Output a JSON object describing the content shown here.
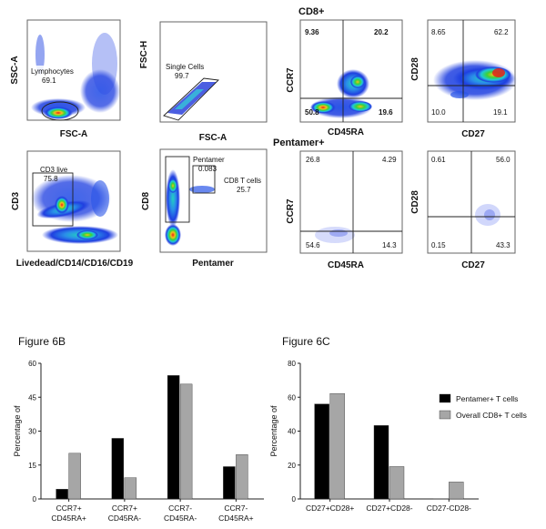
{
  "sections": {
    "cd8_label": "CD8+",
    "pentamer_label": "Pentamer+"
  },
  "flow_panels": {
    "lymphocytes": {
      "x_axis": "FSC-A",
      "y_axis": "SSC-A",
      "gate_name": "Lymphocytes",
      "gate_value": "69.1"
    },
    "single_cells": {
      "x_axis": "FSC-A",
      "y_axis": "FSC-H",
      "gate_name": "Single Cells",
      "gate_value": "99.7"
    },
    "cd3_live": {
      "x_axis": "Livedead/CD14/CD16/CD19",
      "y_axis": "CD3",
      "gate_name": "CD3 live",
      "gate_value": "75.8"
    },
    "pentamer": {
      "x_axis": "Pentamer",
      "y_axis": "CD8",
      "gate_name": "Pentamer",
      "gate_value": "0.083",
      "gate2_name": "CD8 T cells",
      "gate2_value": "25.7"
    },
    "cd8_ccr7": {
      "x_axis": "CD45RA",
      "y_axis": "CCR7",
      "q_tl": "9.36",
      "q_tr": "20.2",
      "q_bl": "50.8",
      "q_br": "19.6"
    },
    "cd8_cd28": {
      "x_axis": "CD27",
      "y_axis": "CD28",
      "q_tl": "8.65",
      "q_tr": "62.2",
      "q_bl": "10.0",
      "q_br": "19.1"
    },
    "pent_ccr7": {
      "x_axis": "CD45RA",
      "y_axis": "CCR7",
      "q_tl": "26.8",
      "q_tr": "4.29",
      "q_bl": "54.6",
      "q_br": "14.3"
    },
    "pent_cd28": {
      "x_axis": "CD27",
      "y_axis": "CD28",
      "q_tl": "0.61",
      "q_tr": "56.0",
      "q_bl": "0.15",
      "q_br": "43.3"
    }
  },
  "chart_data": [
    {
      "type": "bar",
      "title": "Figure 6B",
      "ylabel": "Percentage of",
      "xlabel": "",
      "ylim": [
        0,
        60
      ],
      "yticks": [
        "0",
        "15",
        "30",
        "45",
        "60"
      ],
      "categories": [
        [
          "CCR7+",
          "CD45RA+"
        ],
        [
          "CCR7+",
          "CD45RA-"
        ],
        [
          "CCR7-",
          "CD45RA-"
        ],
        [
          "CCR7-",
          "CD45RA+"
        ]
      ],
      "series": [
        {
          "name": "Pentamer+ T cells",
          "color": "#000000",
          "values": [
            4.3,
            26.8,
            54.6,
            14.3
          ]
        },
        {
          "name": "Overall CD8+ T cells",
          "color": "#a6a6a6",
          "values": [
            20.2,
            9.4,
            50.8,
            19.6
          ]
        }
      ]
    },
    {
      "type": "bar",
      "title": "Figure 6C",
      "ylabel": "Percentage of",
      "xlabel": "",
      "ylim": [
        0,
        80
      ],
      "yticks": [
        "0",
        "20",
        "40",
        "60",
        "80"
      ],
      "categories": [
        [
          "CD27+CD28+"
        ],
        [
          "CD27+CD28-"
        ],
        [
          "CD27-CD28-"
        ]
      ],
      "series": [
        {
          "name": "Pentamer+ T cells",
          "color": "#000000",
          "values": [
            56.0,
            43.3,
            0.15
          ]
        },
        {
          "name": "Overall CD8+ T cells",
          "color": "#a6a6a6",
          "values": [
            62.2,
            19.1,
            10.0
          ]
        }
      ],
      "legend": {
        "position": "top-right",
        "entries": [
          "Pentamer+ T cells",
          "Overall CD8+ T cells"
        ]
      }
    }
  ]
}
